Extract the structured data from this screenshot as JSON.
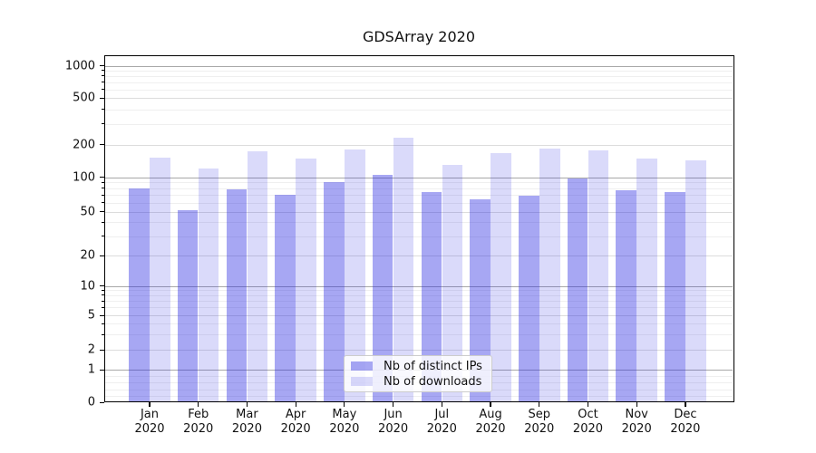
{
  "title": "GDSArray 2020",
  "chart_data": {
    "type": "bar",
    "title": "GDSArray 2020",
    "xlabel": "",
    "ylabel": "",
    "yscale": "log-like (asinh/symlog), linear near 0",
    "ylim": [
      0,
      1000
    ],
    "grid": true,
    "legend_position": "lower center (inside plot)",
    "y_ticks": [
      1000,
      500,
      200,
      100,
      50,
      20,
      10,
      5,
      2,
      1,
      0
    ],
    "categories": [
      "Jan",
      "Feb",
      "Mar",
      "Apr",
      "May",
      "Jun",
      "Jul",
      "Aug",
      "Sep",
      "Oct",
      "Nov",
      "Dec"
    ],
    "category_year": "2020",
    "series": [
      {
        "name": "Nb of distinct IPs",
        "color": "rgba(35,35,225,0.40)",
        "values": [
          80,
          51,
          78,
          70,
          91,
          105,
          74,
          64,
          69,
          98,
          77,
          74
        ]
      },
      {
        "name": "Nb of downloads",
        "color": "rgba(35,35,225,0.17)",
        "values": [
          150,
          121,
          172,
          148,
          180,
          228,
          130,
          168,
          184,
          175,
          148,
          142
        ]
      }
    ]
  },
  "colors": {
    "major_grid": "#a8a8a8",
    "labeled_grid": "#dcdcdc",
    "minor_grid": "#efefef",
    "axis": "#000000"
  }
}
